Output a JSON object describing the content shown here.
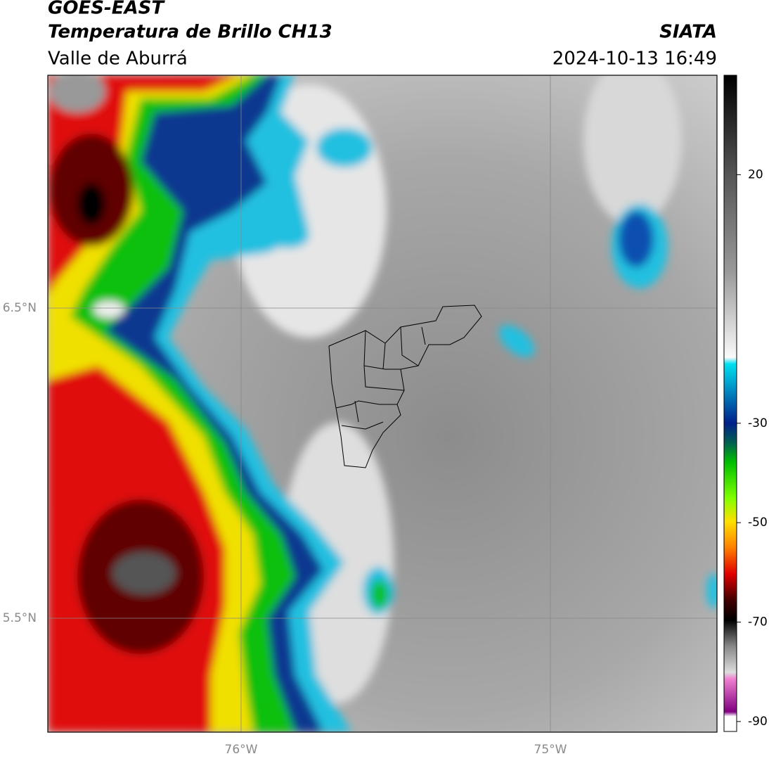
{
  "header": {
    "title": "GOES-EAST",
    "subtitle": "Temperatura de Brillo CH13",
    "region": "Valle de Aburrá",
    "brand": "SIATA",
    "datetime": "2024-10-13 16:49"
  },
  "map": {
    "lat_labels": [
      "6.5°N",
      "5.5°N"
    ],
    "lon_labels": [
      "76°W",
      "75°W"
    ]
  },
  "colorbar": {
    "range": [
      -92,
      40
    ],
    "ticks": [
      20,
      -30,
      -50,
      -70,
      -90
    ]
  }
}
